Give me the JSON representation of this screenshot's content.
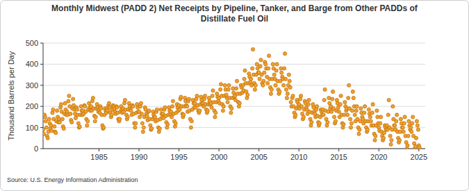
{
  "chart_data": {
    "type": "scatter",
    "title": "Monthly Midwest (PADD 2) Net Receipts by Pipeline, Tanker, and Barge from Other PADDs of\nDistillate Fuel Oil",
    "y_label": "Thousand Barrels per Day",
    "source": "Source: U.S. Energy Information Administration",
    "color": "#f0a030",
    "marker": "circle",
    "grid": true,
    "xlim": [
      1978,
      2025.8
    ],
    "xticks": [
      1985,
      1990,
      1995,
      2000,
      2005,
      2010,
      2015,
      2020,
      2025
    ],
    "ylim": [
      0,
      500
    ],
    "yticks": [
      0,
      100,
      200,
      300,
      400,
      500
    ],
    "x": [
      1978,
      1978.08,
      1978.17,
      1978.25,
      1978.33,
      1978.42,
      1978.5,
      1978.58,
      1978.67,
      1978.75,
      1978.83,
      1978.92,
      1979,
      1979.08,
      1979.17,
      1979.25,
      1979.33,
      1979.42,
      1979.5,
      1979.58,
      1979.67,
      1979.75,
      1979.83,
      1979.92,
      1980,
      1980.08,
      1980.17,
      1980.25,
      1980.33,
      1980.42,
      1980.5,
      1980.58,
      1980.67,
      1980.75,
      1980.83,
      1980.92,
      1981,
      1981.08,
      1981.17,
      1981.25,
      1981.33,
      1981.42,
      1981.5,
      1981.58,
      1981.67,
      1981.75,
      1981.83,
      1981.92,
      1982,
      1982.08,
      1982.17,
      1982.25,
      1982.33,
      1982.42,
      1982.5,
      1982.58,
      1982.67,
      1982.75,
      1982.83,
      1982.92,
      1983,
      1983.08,
      1983.17,
      1983.25,
      1983.33,
      1983.42,
      1983.5,
      1983.58,
      1983.67,
      1983.75,
      1983.83,
      1983.92,
      1984,
      1984.08,
      1984.17,
      1984.25,
      1984.33,
      1984.42,
      1984.5,
      1984.58,
      1984.67,
      1984.75,
      1984.83,
      1984.92,
      1985,
      1985.08,
      1985.17,
      1985.25,
      1985.33,
      1985.42,
      1985.5,
      1985.58,
      1985.67,
      1985.75,
      1985.83,
      1985.92,
      1986,
      1986.08,
      1986.17,
      1986.25,
      1986.33,
      1986.42,
      1986.5,
      1986.58,
      1986.67,
      1986.75,
      1986.83,
      1986.92,
      1987,
      1987.08,
      1987.17,
      1987.25,
      1987.33,
      1987.42,
      1987.5,
      1987.58,
      1987.67,
      1987.75,
      1987.83,
      1987.92,
      1988,
      1988.08,
      1988.17,
      1988.25,
      1988.33,
      1988.42,
      1988.5,
      1988.58,
      1988.67,
      1988.75,
      1988.83,
      1988.92,
      1989,
      1989.08,
      1989.17,
      1989.25,
      1989.33,
      1989.42,
      1989.5,
      1989.58,
      1989.67,
      1989.75,
      1989.83,
      1989.92,
      1990,
      1990.08,
      1990.17,
      1990.25,
      1990.33,
      1990.42,
      1990.5,
      1990.58,
      1990.67,
      1990.75,
      1990.83,
      1990.92,
      1991,
      1991.08,
      1991.17,
      1991.25,
      1991.33,
      1991.42,
      1991.5,
      1991.58,
      1991.67,
      1991.75,
      1991.83,
      1991.92,
      1992,
      1992.08,
      1992.17,
      1992.25,
      1992.33,
      1992.42,
      1992.5,
      1992.58,
      1992.67,
      1992.75,
      1992.83,
      1992.92,
      1993,
      1993.08,
      1993.17,
      1993.25,
      1993.33,
      1993.42,
      1993.5,
      1993.58,
      1993.67,
      1993.75,
      1993.83,
      1993.92,
      1994,
      1994.08,
      1994.17,
      1994.25,
      1994.33,
      1994.42,
      1994.5,
      1994.58,
      1994.67,
      1994.75,
      1994.83,
      1994.92,
      1995,
      1995.08,
      1995.17,
      1995.25,
      1995.33,
      1995.42,
      1995.5,
      1995.58,
      1995.67,
      1995.75,
      1995.83,
      1995.92,
      1996,
      1996.08,
      1996.17,
      1996.25,
      1996.33,
      1996.42,
      1996.5,
      1996.58,
      1996.67,
      1996.75,
      1996.83,
      1996.92,
      1997,
      1997.08,
      1997.17,
      1997.25,
      1997.33,
      1997.42,
      1997.5,
      1997.58,
      1997.67,
      1997.75,
      1997.83,
      1997.92,
      1998,
      1998.08,
      1998.17,
      1998.25,
      1998.33,
      1998.42,
      1998.5,
      1998.58,
      1998.67,
      1998.75,
      1998.83,
      1998.92,
      1999,
      1999.08,
      1999.17,
      1999.25,
      1999.33,
      1999.42,
      1999.5,
      1999.58,
      1999.67,
      1999.75,
      1999.83,
      1999.92,
      2000,
      2000.08,
      2000.17,
      2000.25,
      2000.33,
      2000.42,
      2000.5,
      2000.58,
      2000.67,
      2000.75,
      2000.83,
      2000.92,
      2001,
      2001.08,
      2001.17,
      2001.25,
      2001.33,
      2001.42,
      2001.5,
      2001.58,
      2001.67,
      2001.75,
      2001.83,
      2001.92,
      2002,
      2002.08,
      2002.17,
      2002.25,
      2002.33,
      2002.42,
      2002.5,
      2002.58,
      2002.67,
      2002.75,
      2002.83,
      2002.92,
      2003,
      2003.08,
      2003.17,
      2003.25,
      2003.33,
      2003.42,
      2003.5,
      2003.58,
      2003.67,
      2003.75,
      2003.83,
      2003.92,
      2004,
      2004.08,
      2004.17,
      2004.25,
      2004.33,
      2004.42,
      2004.5,
      2004.58,
      2004.67,
      2004.75,
      2004.83,
      2004.92,
      2005,
      2005.08,
      2005.17,
      2005.25,
      2005.33,
      2005.42,
      2005.5,
      2005.58,
      2005.67,
      2005.75,
      2005.83,
      2005.92,
      2006,
      2006.08,
      2006.17,
      2006.25,
      2006.33,
      2006.42,
      2006.5,
      2006.58,
      2006.67,
      2006.75,
      2006.83,
      2006.92,
      2007,
      2007.08,
      2007.17,
      2007.25,
      2007.33,
      2007.42,
      2007.5,
      2007.58,
      2007.67,
      2007.75,
      2007.83,
      2007.92,
      2008,
      2008.08,
      2008.17,
      2008.25,
      2008.33,
      2008.42,
      2008.5,
      2008.58,
      2008.67,
      2008.75,
      2008.83,
      2008.92,
      2009,
      2009.08,
      2009.17,
      2009.25,
      2009.33,
      2009.42,
      2009.5,
      2009.58,
      2009.67,
      2009.75,
      2009.83,
      2009.92,
      2010,
      2010.08,
      2010.17,
      2010.25,
      2010.33,
      2010.42,
      2010.5,
      2010.58,
      2010.67,
      2010.75,
      2010.83,
      2010.92,
      2011,
      2011.08,
      2011.17,
      2011.25,
      2011.33,
      2011.42,
      2011.5,
      2011.58,
      2011.67,
      2011.75,
      2011.83,
      2011.92,
      2012,
      2012.08,
      2012.17,
      2012.25,
      2012.33,
      2012.42,
      2012.5,
      2012.58,
      2012.67,
      2012.75,
      2012.83,
      2012.92,
      2013,
      2013.08,
      2013.17,
      2013.25,
      2013.33,
      2013.42,
      2013.5,
      2013.58,
      2013.67,
      2013.75,
      2013.83,
      2013.92,
      2014,
      2014.08,
      2014.17,
      2014.25,
      2014.33,
      2014.42,
      2014.5,
      2014.58,
      2014.67,
      2014.75,
      2014.83,
      2014.92,
      2015,
      2015.08,
      2015.17,
      2015.25,
      2015.33,
      2015.42,
      2015.5,
      2015.58,
      2015.67,
      2015.75,
      2015.83,
      2015.92,
      2016,
      2016.08,
      2016.17,
      2016.25,
      2016.33,
      2016.42,
      2016.5,
      2016.58,
      2016.67,
      2016.75,
      2016.83,
      2016.92,
      2017,
      2017.08,
      2017.17,
      2017.25,
      2017.33,
      2017.42,
      2017.5,
      2017.58,
      2017.67,
      2017.75,
      2017.83,
      2017.92,
      2018,
      2018.08,
      2018.17,
      2018.25,
      2018.33,
      2018.42,
      2018.5,
      2018.58,
      2018.67,
      2018.75,
      2018.83,
      2018.92,
      2019,
      2019.08,
      2019.17,
      2019.25,
      2019.33,
      2019.42,
      2019.5,
      2019.58,
      2019.67,
      2019.75,
      2019.83,
      2019.92,
      2020,
      2020.08,
      2020.17,
      2020.25,
      2020.33,
      2020.42,
      2020.5,
      2020.58,
      2020.67,
      2020.75,
      2020.83,
      2020.92,
      2021,
      2021.08,
      2021.17,
      2021.25,
      2021.33,
      2021.42,
      2021.5,
      2021.58,
      2021.67,
      2021.75,
      2021.83,
      2021.92,
      2022,
      2022.08,
      2022.17,
      2022.25,
      2022.33,
      2022.42,
      2022.5,
      2022.58,
      2022.67,
      2022.75,
      2022.83,
      2022.92,
      2023,
      2023.08,
      2023.17,
      2023.25,
      2023.33,
      2023.42,
      2023.5,
      2023.58,
      2023.67,
      2023.75,
      2023.83,
      2023.92,
      2024,
      2024.08,
      2024.17,
      2024.25,
      2024.33,
      2024.42,
      2024.5,
      2024.58,
      2024.67,
      2024.75,
      2024.83,
      2024.92,
      2025,
      2025.08
    ],
    "values": [
      90,
      70,
      160,
      150,
      130,
      100,
      60,
      50,
      80,
      140,
      120,
      95,
      110,
      85,
      170,
      185,
      140,
      105,
      80,
      75,
      130,
      180,
      150,
      125,
      140,
      125,
      195,
      210,
      175,
      140,
      105,
      95,
      165,
      215,
      185,
      160,
      175,
      160,
      225,
      250,
      200,
      165,
      135,
      125,
      190,
      235,
      205,
      185,
      165,
      145,
      195,
      185,
      160,
      120,
      100,
      105,
      160,
      200,
      180,
      160,
      180,
      165,
      205,
      200,
      175,
      140,
      110,
      130,
      185,
      215,
      195,
      180,
      200,
      180,
      225,
      240,
      190,
      155,
      130,
      150,
      190,
      210,
      195,
      175,
      185,
      170,
      200,
      190,
      160,
      110,
      95,
      100,
      160,
      190,
      180,
      170,
      190,
      180,
      205,
      215,
      195,
      170,
      150,
      160,
      185,
      205,
      200,
      190,
      175,
      165,
      200,
      195,
      170,
      140,
      130,
      140,
      175,
      200,
      185,
      170,
      190,
      175,
      215,
      230,
      185,
      160,
      140,
      150,
      185,
      215,
      200,
      185,
      180,
      160,
      205,
      200,
      165,
      120,
      100,
      120,
      170,
      210,
      195,
      175,
      175,
      150,
      200,
      215,
      165,
      120,
      80,
      100,
      150,
      195,
      185,
      165,
      155,
      135,
      175,
      180,
      140,
      110,
      90,
      95,
      140,
      175,
      160,
      150,
      150,
      130,
      175,
      185,
      135,
      100,
      80,
      95,
      140,
      185,
      165,
      150,
      165,
      145,
      185,
      195,
      155,
      125,
      100,
      115,
      160,
      195,
      180,
      165,
      175,
      150,
      200,
      225,
      165,
      130,
      105,
      120,
      170,
      210,
      195,
      180,
      205,
      185,
      235,
      245,
      200,
      165,
      150,
      160,
      200,
      240,
      225,
      205,
      200,
      175,
      225,
      235,
      180,
      140,
      100,
      130,
      185,
      230,
      215,
      195,
      215,
      195,
      235,
      250,
      205,
      180,
      170,
      180,
      210,
      245,
      230,
      215,
      215,
      200,
      235,
      250,
      210,
      185,
      170,
      180,
      210,
      240,
      225,
      210,
      215,
      195,
      250,
      275,
      220,
      180,
      150,
      170,
      220,
      260,
      245,
      225,
      240,
      215,
      280,
      305,
      250,
      210,
      180,
      200,
      250,
      300,
      280,
      255,
      240,
      220,
      280,
      300,
      240,
      200,
      170,
      190,
      240,
      285,
      265,
      245,
      250,
      230,
      285,
      320,
      260,
      220,
      200,
      215,
      260,
      300,
      290,
      265,
      300,
      275,
      330,
      370,
      310,
      270,
      240,
      255,
      310,
      355,
      340,
      315,
      330,
      300,
      380,
      470,
      350,
      310,
      280,
      300,
      350,
      400,
      380,
      360,
      360,
      330,
      390,
      420,
      350,
      310,
      300,
      320,
      360,
      410,
      400,
      380,
      340,
      310,
      380,
      440,
      330,
      290,
      260,
      280,
      330,
      400,
      380,
      350,
      330,
      300,
      370,
      400,
      320,
      280,
      260,
      270,
      320,
      380,
      360,
      340,
      330,
      300,
      380,
      450,
      330,
      280,
      240,
      260,
      300,
      350,
      320,
      290,
      220,
      200,
      240,
      250,
      200,
      170,
      150,
      160,
      190,
      230,
      220,
      200,
      210,
      190,
      235,
      250,
      200,
      165,
      140,
      150,
      185,
      225,
      215,
      195,
      185,
      165,
      210,
      230,
      175,
      140,
      110,
      125,
      170,
      210,
      195,
      175,
      165,
      150,
      185,
      200,
      155,
      125,
      110,
      120,
      150,
      185,
      175,
      160,
      185,
      160,
      230,
      280,
      180,
      140,
      110,
      125,
      175,
      240,
      215,
      190,
      200,
      175,
      235,
      270,
      190,
      150,
      120,
      130,
      180,
      230,
      215,
      195,
      175,
      150,
      210,
      250,
      160,
      120,
      100,
      115,
      160,
      220,
      200,
      180,
      190,
      160,
      240,
      300,
      190,
      140,
      100,
      120,
      180,
      270,
      240,
      200,
      160,
      130,
      180,
      200,
      140,
      100,
      70,
      90,
      130,
      190,
      170,
      150,
      140,
      120,
      170,
      200,
      130,
      100,
      80,
      90,
      130,
      185,
      165,
      150,
      130,
      110,
      170,
      210,
      110,
      70,
      40,
      60,
      110,
      180,
      150,
      120,
      100,
      85,
      120,
      150,
      80,
      60,
      40,
      50,
      75,
      110,
      100,
      90,
      110,
      90,
      160,
      230,
      100,
      60,
      20,
      40,
      90,
      200,
      140,
      110,
      110,
      90,
      130,
      160,
      80,
      50,
      30,
      40,
      80,
      140,
      120,
      100,
      100,
      80,
      120,
      150,
      60,
      30,
      0,
      15,
      60,
      130,
      110,
      90,
      100,
      80,
      120,
      150,
      60,
      25,
      0,
      10,
      50,
      130,
      110,
      90,
      15,
      5
    ]
  }
}
